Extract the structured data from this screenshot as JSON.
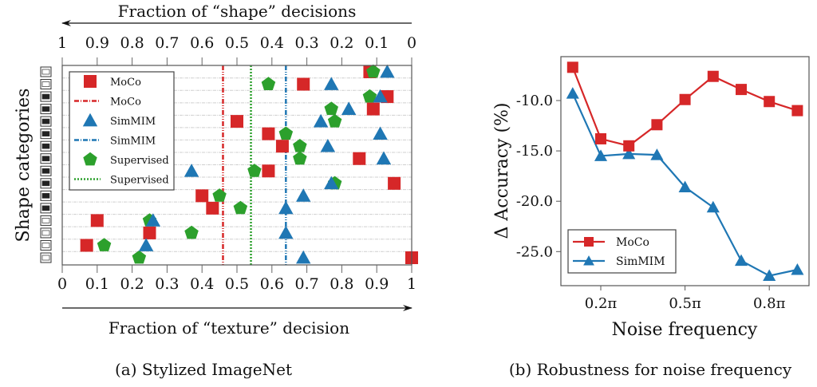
{
  "chart_data": [
    {
      "type": "scatter",
      "title": "",
      "caption": "(a) Stylized ImageNet",
      "xlabel": "Fraction of “texture” decision",
      "x2label": "Fraction of “shape” decisions",
      "ylabel": "Shape categories",
      "xlim": [
        0,
        1
      ],
      "xticks": [
        "0",
        "0.1",
        "0.2",
        "0.3",
        "0.4",
        "0.5",
        "0.6",
        "0.7",
        "0.8",
        "0.9",
        "1"
      ],
      "x2ticks": [
        "1",
        "0.9",
        "0.8",
        "0.7",
        "0.6",
        "0.5",
        "0.4",
        "0.3",
        "0.2",
        "0.1",
        "0"
      ],
      "categories": [
        "boat",
        "knife",
        "airplane",
        "bear",
        "dog",
        "keyboard",
        "cat",
        "elephant",
        "oven",
        "bird",
        "car",
        "truck",
        "bottle",
        "chair",
        "clock",
        "bicycle"
      ],
      "grid": true,
      "legend": {
        "placement": "top-left",
        "entries": [
          {
            "label": "MoCo",
            "kind": "marker-square",
            "color": "#d62728"
          },
          {
            "label": "MoCo",
            "kind": "line-dashdot",
            "color": "#d62728"
          },
          {
            "label": "SimMIM",
            "kind": "marker-triangle",
            "color": "#1f77b4"
          },
          {
            "label": "SimMIM",
            "kind": "line-dashdot",
            "color": "#1f77b4"
          },
          {
            "label": "Supervised",
            "kind": "marker-pentagon",
            "color": "#2ca02c"
          },
          {
            "label": "Supervised",
            "kind": "line-dotted",
            "color": "#2ca02c"
          }
        ]
      },
      "series": [
        {
          "name": "MoCo",
          "marker": "square",
          "color": "#d62728",
          "values": [
            0.88,
            0.69,
            0.93,
            0.89,
            0.5,
            0.59,
            0.63,
            0.85,
            0.59,
            0.95,
            0.4,
            0.43,
            0.1,
            0.25,
            0.07,
            1.0
          ],
          "mean": 0.46
        },
        {
          "name": "SimMIM",
          "marker": "triangle",
          "color": "#1f77b4",
          "values": [
            0.93,
            0.77,
            0.91,
            0.82,
            0.74,
            0.91,
            0.76,
            0.92,
            0.37,
            0.77,
            0.69,
            0.64,
            0.26,
            0.64,
            0.24,
            0.69
          ],
          "mean": 0.64
        },
        {
          "name": "Supervised",
          "marker": "pentagon",
          "color": "#2ca02c",
          "values": [
            0.89,
            0.59,
            0.88,
            0.77,
            0.78,
            0.64,
            0.68,
            0.68,
            0.55,
            0.78,
            0.45,
            0.51,
            0.25,
            0.37,
            0.12,
            0.22
          ],
          "mean": 0.54
        }
      ]
    },
    {
      "type": "line",
      "title": "",
      "caption": "(b) Robustness for noise frequency",
      "xlabel": "Noise frequency",
      "ylabel": "Δ Accuracy (%)",
      "x": [
        0.1,
        0.2,
        0.3,
        0.4,
        0.5,
        0.6,
        0.7,
        0.8,
        0.9
      ],
      "x_unit": "π",
      "xticks": [
        0.2,
        0.5,
        0.8
      ],
      "xtick_labels": [
        "0.2π",
        "0.5π",
        "0.8π"
      ],
      "xlim": [
        0.05,
        0.95
      ],
      "ylim": [
        -28.5,
        -5.5
      ],
      "yticks": [
        -10,
        -15,
        -20,
        -25
      ],
      "ytick_labels": [
        "-10.0",
        "-15.0",
        "-20.0",
        "-25.0"
      ],
      "grid": false,
      "legend": {
        "placement": "bottom-left"
      },
      "series": [
        {
          "name": "MoCo",
          "marker": "square",
          "color": "#d62728",
          "values": [
            -6.7,
            -13.8,
            -14.5,
            -12.4,
            -9.9,
            -7.6,
            -8.9,
            -10.1,
            -11.0
          ]
        },
        {
          "name": "SimMIM",
          "marker": "triangle",
          "color": "#1f77b4",
          "values": [
            -9.3,
            -15.5,
            -15.3,
            -15.4,
            -18.6,
            -20.6,
            -25.9,
            -27.4,
            -26.8
          ]
        }
      ]
    }
  ]
}
